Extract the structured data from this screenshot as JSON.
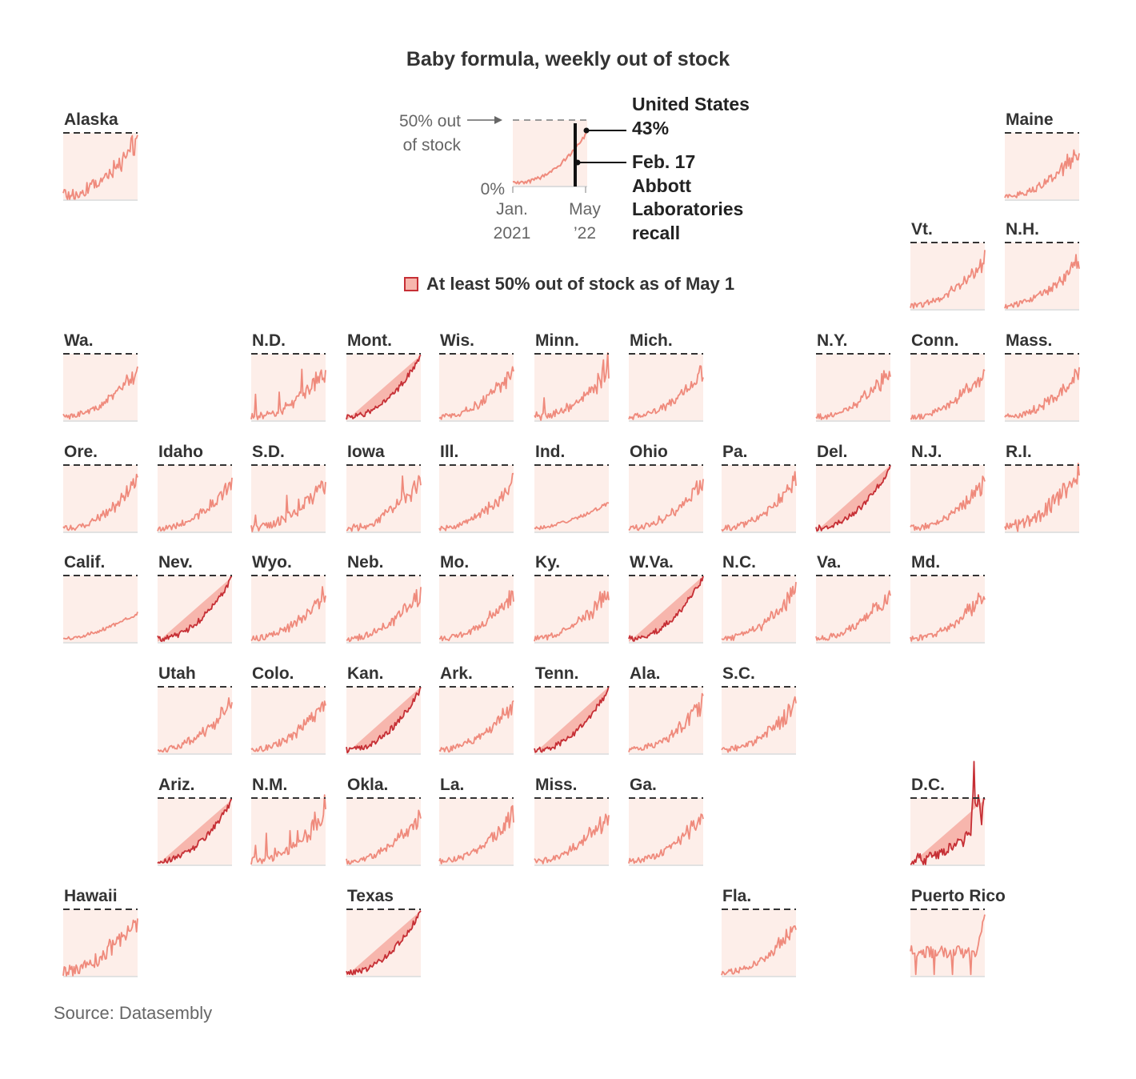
{
  "title": "Baby formula, weekly out of stock",
  "source": "Source: Datasembly",
  "legend": {
    "label": "At least 50% out of stock as of May 1",
    "swatch_fill": "#f7b6ad",
    "swatch_stroke": "#c62f35"
  },
  "colors": {
    "normal_fill": "#fdeee9",
    "normal_line": "#ef8a7c",
    "high_fill": "#f7b6ad",
    "high_line": "#c62f35",
    "threshold": "#333333"
  },
  "example": {
    "label_50": [
      "50% out",
      "of stock"
    ],
    "label_0": "0%",
    "x_start": [
      "Jan.",
      "2021"
    ],
    "x_end": [
      "May",
      "’22"
    ],
    "us_label": "United States",
    "us_value": "43%",
    "recall_label": [
      "Feb. 17",
      "Abbott",
      "Laboratories",
      "recall"
    ]
  },
  "chart_data": {
    "type": "line",
    "x_range": [
      "Jan. 2021",
      "May 2022"
    ],
    "ylim": [
      0,
      50
    ],
    "threshold": 50,
    "threshold_label": "50% out of stock",
    "national": {
      "name": "United States",
      "latest": 43,
      "event": "Feb. 17 Abbott Laboratories recall"
    },
    "states": [
      {
        "name": "Alaska",
        "row": 0,
        "col": 0,
        "high": false,
        "shape": "noisy"
      },
      {
        "name": "Maine",
        "row": 0,
        "col": 10,
        "high": false,
        "shape": "growth"
      },
      {
        "name": "Vt.",
        "row": 1,
        "col": 9,
        "high": false,
        "shape": "growth"
      },
      {
        "name": "N.H.",
        "row": 1,
        "col": 10,
        "high": false,
        "shape": "growth"
      },
      {
        "name": "Wa.",
        "row": 2,
        "col": 0,
        "high": false,
        "shape": "growth"
      },
      {
        "name": "N.D.",
        "row": 2,
        "col": 2,
        "high": false,
        "shape": "spiky"
      },
      {
        "name": "Mont.",
        "row": 2,
        "col": 3,
        "high": true,
        "shape": "growth"
      },
      {
        "name": "Wis.",
        "row": 2,
        "col": 4,
        "high": false,
        "shape": "growth"
      },
      {
        "name": "Minn.",
        "row": 2,
        "col": 5,
        "high": false,
        "shape": "spiky"
      },
      {
        "name": "Mich.",
        "row": 2,
        "col": 6,
        "high": false,
        "shape": "growth"
      },
      {
        "name": "N.Y.",
        "row": 2,
        "col": 8,
        "high": false,
        "shape": "growth"
      },
      {
        "name": "Conn.",
        "row": 2,
        "col": 9,
        "high": false,
        "shape": "growth"
      },
      {
        "name": "Mass.",
        "row": 2,
        "col": 10,
        "high": false,
        "shape": "growth"
      },
      {
        "name": "Ore.",
        "row": 3,
        "col": 0,
        "high": false,
        "shape": "growth"
      },
      {
        "name": "Idaho",
        "row": 3,
        "col": 1,
        "high": false,
        "shape": "growth"
      },
      {
        "name": "S.D.",
        "row": 3,
        "col": 2,
        "high": false,
        "shape": "spiky"
      },
      {
        "name": "Iowa",
        "row": 3,
        "col": 3,
        "high": false,
        "shape": "spiky"
      },
      {
        "name": "Ill.",
        "row": 3,
        "col": 4,
        "high": false,
        "shape": "growth"
      },
      {
        "name": "Ind.",
        "row": 3,
        "col": 5,
        "high": false,
        "shape": "flat"
      },
      {
        "name": "Ohio",
        "row": 3,
        "col": 6,
        "high": false,
        "shape": "growth"
      },
      {
        "name": "Pa.",
        "row": 3,
        "col": 7,
        "high": false,
        "shape": "growth"
      },
      {
        "name": "Del.",
        "row": 3,
        "col": 8,
        "high": true,
        "shape": "growth"
      },
      {
        "name": "N.J.",
        "row": 3,
        "col": 9,
        "high": false,
        "shape": "growth"
      },
      {
        "name": "R.I.",
        "row": 3,
        "col": 10,
        "high": false,
        "shape": "noisy"
      },
      {
        "name": "Calif.",
        "row": 4,
        "col": 0,
        "high": false,
        "shape": "flat"
      },
      {
        "name": "Nev.",
        "row": 4,
        "col": 1,
        "high": true,
        "shape": "growth"
      },
      {
        "name": "Wyo.",
        "row": 4,
        "col": 2,
        "high": false,
        "shape": "growth"
      },
      {
        "name": "Neb.",
        "row": 4,
        "col": 3,
        "high": false,
        "shape": "growth"
      },
      {
        "name": "Mo.",
        "row": 4,
        "col": 4,
        "high": false,
        "shape": "growth"
      },
      {
        "name": "Ky.",
        "row": 4,
        "col": 5,
        "high": false,
        "shape": "growth"
      },
      {
        "name": "W.Va.",
        "row": 4,
        "col": 6,
        "high": true,
        "shape": "growth"
      },
      {
        "name": "N.C.",
        "row": 4,
        "col": 7,
        "high": false,
        "shape": "growth"
      },
      {
        "name": "Va.",
        "row": 4,
        "col": 8,
        "high": false,
        "shape": "growth"
      },
      {
        "name": "Md.",
        "row": 4,
        "col": 9,
        "high": false,
        "shape": "growth"
      },
      {
        "name": "Utah",
        "row": 5,
        "col": 1,
        "high": false,
        "shape": "growth"
      },
      {
        "name": "Colo.",
        "row": 5,
        "col": 2,
        "high": false,
        "shape": "growth"
      },
      {
        "name": "Kan.",
        "row": 5,
        "col": 3,
        "high": true,
        "shape": "growth"
      },
      {
        "name": "Ark.",
        "row": 5,
        "col": 4,
        "high": false,
        "shape": "growth"
      },
      {
        "name": "Tenn.",
        "row": 5,
        "col": 5,
        "high": true,
        "shape": "growth"
      },
      {
        "name": "Ala.",
        "row": 5,
        "col": 6,
        "high": false,
        "shape": "growth"
      },
      {
        "name": "S.C.",
        "row": 5,
        "col": 7,
        "high": false,
        "shape": "growth"
      },
      {
        "name": "Ariz.",
        "row": 6,
        "col": 1,
        "high": true,
        "shape": "growth"
      },
      {
        "name": "N.M.",
        "row": 6,
        "col": 2,
        "high": false,
        "shape": "spiky"
      },
      {
        "name": "Okla.",
        "row": 6,
        "col": 3,
        "high": false,
        "shape": "growth"
      },
      {
        "name": "La.",
        "row": 6,
        "col": 4,
        "high": false,
        "shape": "growth"
      },
      {
        "name": "Miss.",
        "row": 6,
        "col": 5,
        "high": false,
        "shape": "growth"
      },
      {
        "name": "Ga.",
        "row": 6,
        "col": 6,
        "high": false,
        "shape": "growth"
      },
      {
        "name": "D.C.",
        "row": 6,
        "col": 9,
        "high": true,
        "shape": "dc"
      },
      {
        "name": "Hawaii",
        "row": 7,
        "col": 0,
        "high": false,
        "shape": "noisy"
      },
      {
        "name": "Texas",
        "row": 7,
        "col": 3,
        "high": true,
        "shape": "growth"
      },
      {
        "name": "Fla.",
        "row": 7,
        "col": 7,
        "high": false,
        "shape": "growth"
      },
      {
        "name": "Puerto Rico",
        "row": 7,
        "col": 9,
        "high": false,
        "shape": "pr"
      }
    ]
  }
}
